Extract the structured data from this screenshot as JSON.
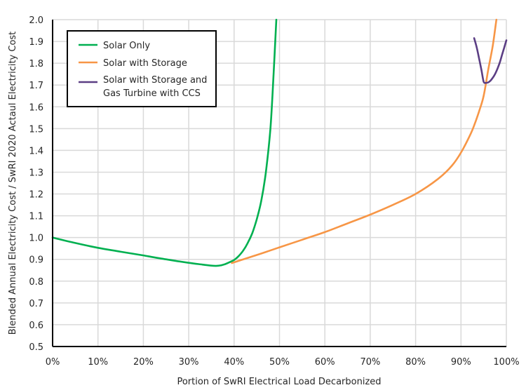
{
  "chart_data": {
    "type": "line",
    "title": "",
    "xlabel": "Portion of SwRI Electrical Load Decarbonized",
    "ylabel": "Blended Annual Electricity Cost / SwRI 2020 Actaul Electricity Cost",
    "xlim": [
      0,
      100
    ],
    "ylim": [
      0.5,
      2.0
    ],
    "x_ticks": [
      "0%",
      "10%",
      "20%",
      "30%",
      "40%",
      "50%",
      "60%",
      "70%",
      "80%",
      "90%",
      "100%"
    ],
    "y_ticks": [
      "0.5",
      "0.6",
      "0.7",
      "0.8",
      "0.9",
      "1.0",
      "1.1",
      "1.2",
      "1.3",
      "1.4",
      "1.5",
      "1.6",
      "1.7",
      "1.8",
      "1.9",
      "2.0"
    ],
    "grid": true,
    "legend_position": "upper-left",
    "series": [
      {
        "name": "Solar Only",
        "color": "#00B050",
        "x": [
          0,
          5,
          10,
          15,
          20,
          25,
          30,
          33,
          35,
          36,
          37,
          38,
          39,
          40,
          41,
          42,
          43,
          44,
          45,
          46,
          47,
          48,
          48.7,
          49.3
        ],
        "y": [
          1.0,
          0.975,
          0.953,
          0.935,
          0.918,
          0.9,
          0.884,
          0.876,
          0.871,
          0.87,
          0.872,
          0.878,
          0.887,
          0.897,
          0.915,
          0.94,
          0.975,
          1.02,
          1.085,
          1.17,
          1.3,
          1.5,
          1.75,
          2.0
        ]
      },
      {
        "name": "Solar with Storage",
        "color": "#F79646",
        "x": [
          39.5,
          45,
          50,
          55,
          60,
          65,
          70,
          75,
          80,
          85,
          88,
          90,
          92,
          93,
          94,
          95,
          96,
          97,
          97.8
        ],
        "y": [
          0.883,
          0.92,
          0.955,
          0.99,
          1.025,
          1.065,
          1.105,
          1.15,
          1.2,
          1.27,
          1.33,
          1.39,
          1.47,
          1.52,
          1.58,
          1.65,
          1.77,
          1.88,
          2.0
        ]
      },
      {
        "name": "Solar with Storage and Gas Turbine with CCS",
        "color": "#5B3E84",
        "x": [
          92.9,
          93.5,
          94,
          94.5,
          95,
          95.5,
          96,
          96.5,
          97,
          97.5,
          98,
          98.5,
          99,
          99.5,
          100
        ],
        "y": [
          1.915,
          1.87,
          1.82,
          1.77,
          1.715,
          1.71,
          1.712,
          1.72,
          1.733,
          1.75,
          1.773,
          1.8,
          1.835,
          1.87,
          1.905
        ]
      }
    ]
  },
  "legend": {
    "items": [
      {
        "label_lines": [
          "Solar Only"
        ],
        "color": "#00B050"
      },
      {
        "label_lines": [
          "Solar with Storage"
        ],
        "color": "#F79646"
      },
      {
        "label_lines": [
          "Solar with Storage and",
          "Gas Turbine with CCS"
        ],
        "color": "#5B3E84"
      }
    ]
  },
  "style": {
    "grid_color": "#D9D9D9",
    "axis_color": "#000000",
    "text_color": "#262626"
  }
}
